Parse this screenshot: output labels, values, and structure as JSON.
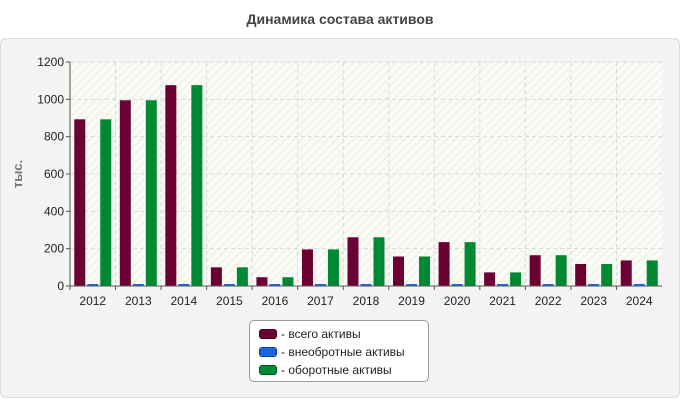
{
  "chart_data": {
    "type": "bar",
    "title": "Динамика состава активов",
    "ylabel": "тыс.",
    "xlabel": "",
    "ylim": [
      0,
      1200
    ],
    "yticks": [
      0,
      200,
      400,
      600,
      800,
      1000,
      1200
    ],
    "categories": [
      "2012",
      "2013",
      "2014",
      "2015",
      "2016",
      "2017",
      "2018",
      "2019",
      "2020",
      "2021",
      "2022",
      "2023",
      "2024"
    ],
    "series": [
      {
        "name": "- всего активы",
        "color": "#6b0033",
        "values": [
          893,
          995,
          1076,
          100,
          47,
          196,
          261,
          158,
          235,
          73,
          165,
          118,
          137
        ]
      },
      {
        "name": "- внеобротные активы",
        "color": "#1a66e0",
        "values": [
          0,
          0,
          0,
          0,
          0,
          0,
          0,
          0,
          0,
          0,
          0,
          0,
          0
        ]
      },
      {
        "name": "- оборотные активы",
        "color": "#008833",
        "values": [
          893,
          995,
          1076,
          100,
          47,
          196,
          261,
          158,
          235,
          73,
          165,
          118,
          137
        ]
      }
    ],
    "grid": true,
    "legend_position": "bottom-center"
  }
}
